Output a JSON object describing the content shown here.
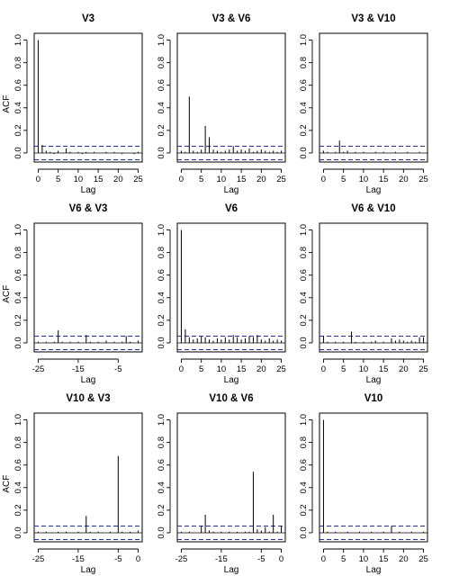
{
  "chart_data": [
    {
      "type": "bar",
      "title": "V3",
      "xlabel": "Lag",
      "ylabel": "ACF",
      "xlim": [
        0,
        25
      ],
      "ylim": [
        -0.08,
        1.06
      ],
      "xticks": [
        0,
        5,
        10,
        15,
        20,
        25
      ],
      "yticks": [
        "0.0",
        "0.2",
        "0.4",
        "0.6",
        "0.8",
        "1.0"
      ],
      "ci": 0.06,
      "lags": [
        0,
        1,
        2,
        3,
        4,
        5,
        6,
        7,
        8,
        9,
        10,
        11,
        12,
        13,
        14,
        15,
        16,
        17,
        18,
        19,
        20,
        21,
        22,
        23,
        24,
        25
      ],
      "values": [
        1.0,
        0.07,
        0.02,
        0.01,
        -0.01,
        0.02,
        0.0,
        0.04,
        0.01,
        0.0,
        0.01,
        -0.01,
        0.01,
        0.0,
        0.01,
        0.0,
        0.0,
        0.01,
        0.0,
        0.01,
        0.0,
        -0.01,
        0.0,
        0.0,
        -0.01,
        0.01
      ]
    },
    {
      "type": "bar",
      "title": "V3 & V6",
      "xlabel": "Lag",
      "ylabel": "",
      "xlim": [
        0,
        25
      ],
      "ylim": [
        -0.08,
        1.06
      ],
      "xticks": [
        0,
        5,
        10,
        15,
        20,
        25
      ],
      "yticks": [
        "0.0",
        "0.2",
        "0.4",
        "0.6",
        "0.8",
        "1.0"
      ],
      "ci": 0.06,
      "lags": [
        0,
        1,
        2,
        3,
        4,
        5,
        6,
        7,
        8,
        9,
        10,
        11,
        12,
        13,
        14,
        15,
        16,
        17,
        18,
        19,
        20,
        21,
        22,
        23,
        24,
        25
      ],
      "values": [
        0.02,
        0.01,
        0.5,
        0.02,
        0.01,
        0.03,
        0.24,
        0.14,
        0.03,
        0.02,
        0.01,
        0.02,
        0.03,
        0.06,
        0.02,
        0.03,
        0.02,
        0.04,
        0.01,
        0.02,
        0.03,
        0.02,
        0.01,
        0.02,
        0.01,
        0.02
      ]
    },
    {
      "type": "bar",
      "title": "V3 & V10",
      "xlabel": "Lag",
      "ylabel": "",
      "xlim": [
        0,
        25
      ],
      "ylim": [
        -0.08,
        1.06
      ],
      "xticks": [
        0,
        5,
        10,
        15,
        20,
        25
      ],
      "yticks": [
        "0.0",
        "0.2",
        "0.4",
        "0.6",
        "0.8",
        "1.0"
      ],
      "ci": 0.06,
      "lags": [
        0,
        1,
        2,
        3,
        4,
        5,
        6,
        7,
        8,
        9,
        10,
        11,
        12,
        13,
        14,
        15,
        16,
        17,
        18,
        19,
        20,
        21,
        22,
        23,
        24,
        25
      ],
      "values": [
        0.02,
        0.01,
        0.0,
        0.01,
        0.11,
        0.01,
        0.02,
        0.0,
        0.01,
        0.0,
        0.01,
        0.0,
        0.0,
        0.01,
        0.0,
        0.01,
        0.0,
        0.0,
        0.01,
        0.0,
        0.0,
        0.01,
        0.0,
        0.0,
        0.01,
        0.0
      ]
    },
    {
      "type": "bar",
      "title": "V6 & V3",
      "xlabel": "Lag",
      "ylabel": "ACF",
      "xlim": [
        -25,
        0
      ],
      "ylim": [
        -0.08,
        1.06
      ],
      "xticks": [
        -25,
        -15,
        -5
      ],
      "yticks": [
        "0.0",
        "0.2",
        "0.4",
        "0.6",
        "0.8",
        "1.0"
      ],
      "ci": 0.06,
      "lags": [
        -25,
        -24,
        -23,
        -22,
        -21,
        -20,
        -19,
        -18,
        -17,
        -16,
        -15,
        -14,
        -13,
        -12,
        -11,
        -10,
        -9,
        -8,
        -7,
        -6,
        -5,
        -4,
        -3,
        -2,
        -1,
        0
      ],
      "values": [
        0.01,
        0.0,
        0.01,
        0.0,
        0.01,
        0.11,
        0.01,
        0.0,
        0.01,
        0.0,
        0.01,
        0.0,
        0.07,
        0.01,
        0.0,
        0.01,
        0.0,
        0.02,
        0.0,
        0.01,
        0.0,
        0.01,
        0.06,
        0.01,
        0.0,
        0.02
      ]
    },
    {
      "type": "bar",
      "title": "V6",
      "xlabel": "Lag",
      "ylabel": "",
      "xlim": [
        0,
        25
      ],
      "ylim": [
        -0.08,
        1.06
      ],
      "xticks": [
        0,
        5,
        10,
        15,
        20,
        25
      ],
      "yticks": [
        "0.0",
        "0.2",
        "0.4",
        "0.6",
        "0.8",
        "1.0"
      ],
      "ci": 0.06,
      "lags": [
        0,
        1,
        2,
        3,
        4,
        5,
        6,
        7,
        8,
        9,
        10,
        11,
        12,
        13,
        14,
        15,
        16,
        17,
        18,
        19,
        20,
        21,
        22,
        23,
        24,
        25
      ],
      "values": [
        1.0,
        0.12,
        0.05,
        0.03,
        0.04,
        0.06,
        0.05,
        0.03,
        0.02,
        0.04,
        0.03,
        0.05,
        0.03,
        0.07,
        0.05,
        0.03,
        0.04,
        0.06,
        0.05,
        0.07,
        0.03,
        0.02,
        0.04,
        0.02,
        0.03,
        0.02
      ]
    },
    {
      "type": "bar",
      "title": "V6 & V10",
      "xlabel": "Lag",
      "ylabel": "",
      "xlim": [
        0,
        25
      ],
      "ylim": [
        -0.08,
        1.06
      ],
      "xticks": [
        0,
        5,
        10,
        15,
        20,
        25
      ],
      "yticks": [
        "0.0",
        "0.2",
        "0.4",
        "0.6",
        "0.8",
        "1.0"
      ],
      "ci": 0.06,
      "lags": [
        0,
        1,
        2,
        3,
        4,
        5,
        6,
        7,
        8,
        9,
        10,
        11,
        12,
        13,
        14,
        15,
        16,
        17,
        18,
        19,
        20,
        21,
        22,
        23,
        24,
        25
      ],
      "values": [
        0.06,
        0.01,
        0.0,
        0.01,
        0.0,
        0.01,
        0.0,
        0.1,
        0.01,
        0.0,
        0.01,
        0.0,
        0.01,
        0.02,
        0.0,
        0.01,
        0.0,
        0.04,
        0.02,
        0.03,
        0.02,
        0.01,
        0.02,
        0.01,
        0.05,
        0.05
      ]
    },
    {
      "type": "bar",
      "title": "V10 & V3",
      "xlabel": "Lag",
      "ylabel": "ACF",
      "xlim": [
        -25,
        0
      ],
      "ylim": [
        -0.08,
        1.06
      ],
      "xticks": [
        -25,
        -15,
        -5,
        0
      ],
      "yticks": [
        "0.0",
        "0.2",
        "0.4",
        "0.6",
        "0.8",
        "1.0"
      ],
      "ci": 0.06,
      "lags": [
        -25,
        -24,
        -23,
        -22,
        -21,
        -20,
        -19,
        -18,
        -17,
        -16,
        -15,
        -14,
        -13,
        -12,
        -11,
        -10,
        -9,
        -8,
        -7,
        -6,
        -5,
        -4,
        -3,
        -2,
        -1,
        0
      ],
      "values": [
        0.01,
        0.0,
        0.01,
        0.0,
        0.0,
        0.01,
        0.0,
        0.01,
        0.0,
        0.0,
        0.01,
        0.0,
        0.15,
        0.01,
        0.0,
        0.01,
        0.0,
        0.0,
        0.01,
        0.0,
        0.68,
        0.01,
        0.0,
        0.01,
        0.0,
        0.02
      ]
    },
    {
      "type": "bar",
      "title": "V10 & V6",
      "xlabel": "Lag",
      "ylabel": "",
      "xlim": [
        -25,
        0
      ],
      "ylim": [
        -0.08,
        1.06
      ],
      "xticks": [
        -25,
        -15,
        -5,
        0
      ],
      "yticks": [
        "0.0",
        "0.2",
        "0.4",
        "0.6",
        "0.8",
        "1.0"
      ],
      "ci": 0.06,
      "lags": [
        -25,
        -24,
        -23,
        -22,
        -21,
        -20,
        -19,
        -18,
        -17,
        -16,
        -15,
        -14,
        -13,
        -12,
        -11,
        -10,
        -9,
        -8,
        -7,
        -6,
        -5,
        -4,
        -3,
        -2,
        -1,
        0
      ],
      "values": [
        0.01,
        0.0,
        0.01,
        0.0,
        0.0,
        0.06,
        0.16,
        0.02,
        0.01,
        0.0,
        0.01,
        0.0,
        0.01,
        0.0,
        0.01,
        0.0,
        0.01,
        0.01,
        0.54,
        0.03,
        0.02,
        0.05,
        0.01,
        0.16,
        0.01,
        0.06
      ]
    },
    {
      "type": "bar",
      "title": "V10",
      "xlabel": "Lag",
      "ylabel": "",
      "xlim": [
        0,
        25
      ],
      "ylim": [
        -0.08,
        1.06
      ],
      "xticks": [
        0,
        5,
        10,
        15,
        20,
        25
      ],
      "yticks": [
        "0.0",
        "0.2",
        "0.4",
        "0.6",
        "0.8",
        "1.0"
      ],
      "ci": 0.06,
      "lags": [
        0,
        1,
        2,
        3,
        4,
        5,
        6,
        7,
        8,
        9,
        10,
        11,
        12,
        13,
        14,
        15,
        16,
        17,
        18,
        19,
        20,
        21,
        22,
        23,
        24,
        25
      ],
      "values": [
        1.0,
        0.01,
        0.0,
        0.01,
        0.0,
        0.0,
        0.01,
        0.0,
        0.0,
        0.01,
        0.0,
        0.0,
        0.01,
        0.0,
        0.0,
        0.01,
        0.0,
        0.06,
        0.0,
        0.01,
        0.0,
        0.0,
        0.01,
        0.0,
        0.0,
        0.01
      ]
    }
  ],
  "colors": {
    "confidence_band": "#1f2fa8",
    "bars": "#000000",
    "frame": "#000000"
  }
}
